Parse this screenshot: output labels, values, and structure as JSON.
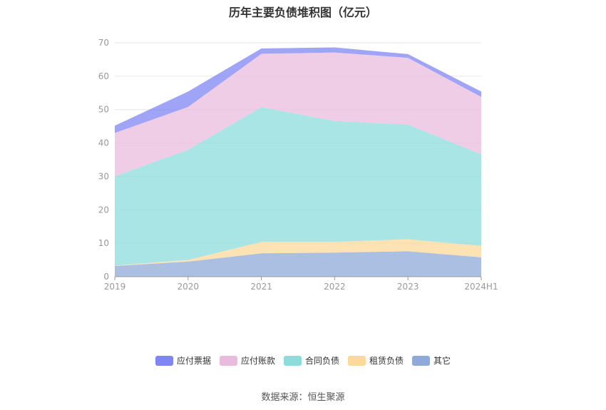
{
  "title": "历年主要负债堆积图（亿元）",
  "source": "数据来源：恒生聚源",
  "chart_data": {
    "type": "area",
    "stacked": true,
    "title": "历年主要负债堆积图（亿元）",
    "categories": [
      "2019",
      "2020",
      "2021",
      "2022",
      "2023",
      "2024H1"
    ],
    "ylim": [
      0,
      70
    ],
    "yticks": [
      0,
      10,
      20,
      30,
      40,
      50,
      60,
      70
    ],
    "grid": true,
    "legend_position": "bottom",
    "series": [
      {
        "name": "其它",
        "color": "#8fa9d8",
        "values": [
          3.2,
          4.5,
          7.0,
          7.2,
          7.6,
          5.8
        ]
      },
      {
        "name": "租赁负债",
        "color": "#fcd99a",
        "values": [
          0.1,
          0.5,
          3.4,
          3.2,
          3.6,
          3.4
        ]
      },
      {
        "name": "合同负债",
        "color": "#8ddcdc",
        "values": [
          26.7,
          33.0,
          40.3,
          36.2,
          34.3,
          27.4
        ]
      },
      {
        "name": "应付账款",
        "color": "#e9bcdd",
        "values": [
          13.0,
          12.8,
          16.0,
          20.5,
          20.0,
          17.2
        ]
      },
      {
        "name": "应付票据",
        "color": "#7f86f4",
        "values": [
          2.2,
          4.6,
          1.6,
          1.5,
          1.1,
          1.6
        ]
      }
    ]
  }
}
